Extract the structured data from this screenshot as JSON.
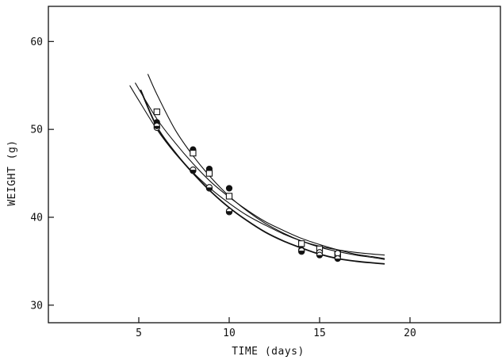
{
  "chart_data": {
    "type": "scatter",
    "xlabel": "TIME (days)",
    "ylabel": "WEIGHT (g)",
    "xlim": [
      0,
      25
    ],
    "ylim": [
      28,
      64
    ],
    "xticks": [
      "5",
      "10",
      "15",
      "20"
    ],
    "yticks": [
      "30",
      "40",
      "50",
      "60"
    ],
    "grid": false,
    "series": [
      {
        "marker": "filled-circle",
        "points": [
          [
            6,
            50.8
          ],
          [
            8,
            47.7
          ],
          [
            8.9,
            45.5
          ],
          [
            10,
            43.3
          ],
          [
            14,
            36.3
          ],
          [
            15,
            36.2
          ],
          [
            16,
            35.6
          ]
        ],
        "curve": [
          [
            4.8,
            55.3
          ],
          [
            6,
            51.2
          ],
          [
            7,
            48.5
          ],
          [
            8,
            46.1
          ],
          [
            9,
            44.0
          ],
          [
            10,
            42.3
          ],
          [
            11,
            40.8
          ],
          [
            12,
            39.5
          ],
          [
            13,
            38.5
          ],
          [
            14,
            37.6
          ],
          [
            15,
            36.9
          ],
          [
            16,
            36.3
          ],
          [
            17,
            35.8
          ],
          [
            18,
            35.5
          ],
          [
            18.6,
            35.3
          ]
        ]
      },
      {
        "marker": "open-square",
        "points": [
          [
            6,
            52.0
          ],
          [
            8,
            47.3
          ],
          [
            8.9,
            45.0
          ],
          [
            10,
            42.4
          ],
          [
            14,
            37.0
          ],
          [
            15,
            36.4
          ],
          [
            16,
            35.8
          ]
        ],
        "curve": [
          [
            5.5,
            56.3
          ],
          [
            6,
            54.0
          ],
          [
            7,
            50.0
          ],
          [
            8,
            47.0
          ],
          [
            9,
            44.5
          ],
          [
            10,
            42.4
          ],
          [
            11,
            40.7
          ],
          [
            12,
            39.3
          ],
          [
            13,
            38.2
          ],
          [
            14,
            37.3
          ],
          [
            15,
            36.6
          ],
          [
            16,
            36.1
          ],
          [
            17,
            35.7
          ],
          [
            18,
            35.4
          ],
          [
            18.6,
            35.2
          ]
        ]
      },
      {
        "marker": "open-circle",
        "points": [
          [
            6,
            50.2
          ],
          [
            8,
            45.3
          ],
          [
            8.9,
            43.3
          ],
          [
            10,
            40.6
          ],
          [
            14,
            36.1
          ],
          [
            15,
            36.0
          ],
          [
            16,
            35.9
          ]
        ],
        "curve": [
          [
            4.5,
            55.0
          ],
          [
            5,
            53.3
          ],
          [
            6,
            50.0
          ],
          [
            7,
            47.3
          ],
          [
            8,
            45.1
          ],
          [
            9,
            43.2
          ],
          [
            10,
            41.6
          ],
          [
            11,
            40.2
          ],
          [
            12,
            39.1
          ],
          [
            13,
            38.1
          ],
          [
            14,
            37.3
          ],
          [
            15,
            36.7
          ],
          [
            16,
            36.3
          ],
          [
            17,
            36.0
          ],
          [
            18,
            35.8
          ],
          [
            18.6,
            35.7
          ]
        ]
      },
      {
        "marker": "half-filled-circle",
        "points": [
          [
            6,
            50.4
          ],
          [
            8,
            45.4
          ],
          [
            8.9,
            43.4
          ],
          [
            10,
            40.7
          ],
          [
            14,
            36.2
          ],
          [
            15,
            35.7
          ],
          [
            16,
            35.3
          ]
        ],
        "curve": [
          [
            5.1,
            54.5
          ],
          [
            6,
            50.3
          ],
          [
            7,
            47.4
          ],
          [
            8,
            45.0
          ],
          [
            9,
            42.9
          ],
          [
            10,
            41.1
          ],
          [
            11,
            39.6
          ],
          [
            12,
            38.3
          ],
          [
            13,
            37.3
          ],
          [
            14,
            36.5
          ],
          [
            15,
            35.8
          ],
          [
            16,
            35.3
          ],
          [
            17,
            35.0
          ],
          [
            18,
            34.8
          ],
          [
            18.6,
            34.7
          ]
        ]
      }
    ]
  }
}
